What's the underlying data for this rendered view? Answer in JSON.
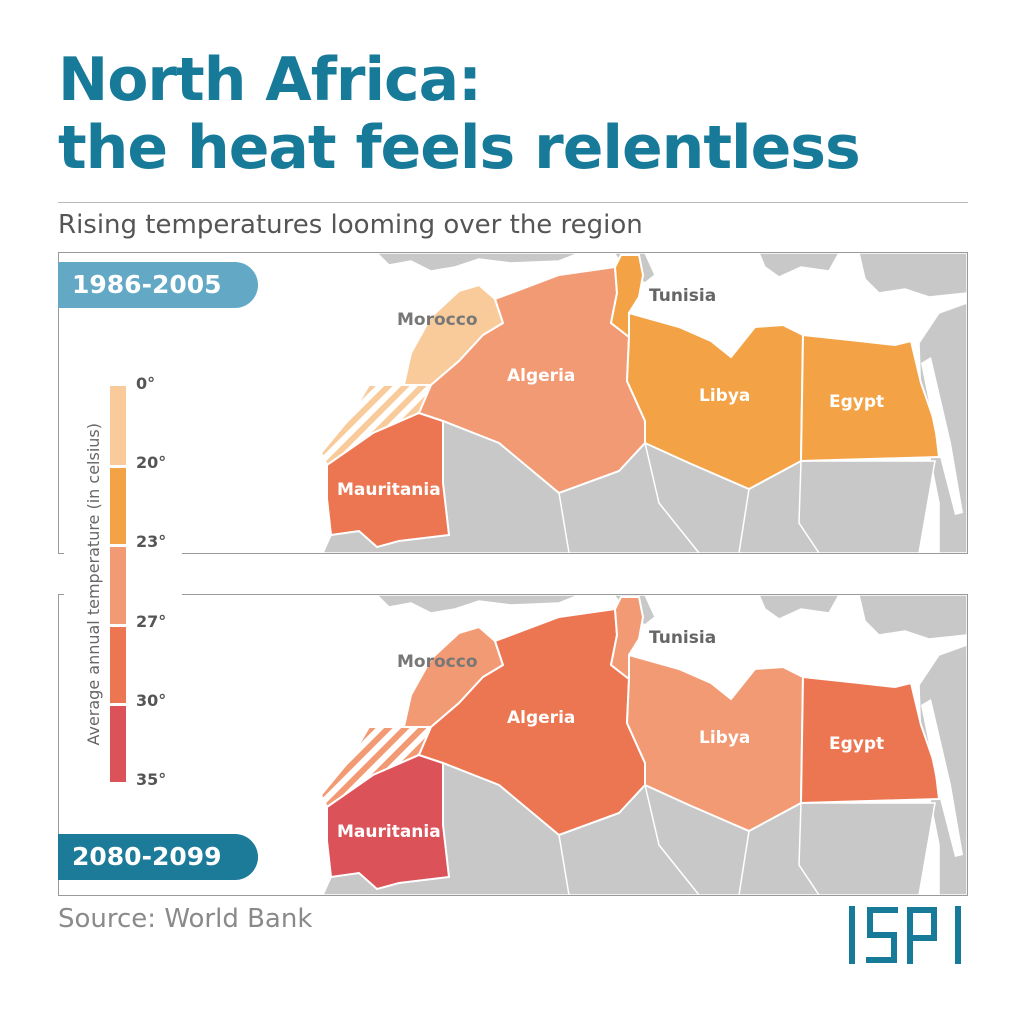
{
  "title": {
    "line1": "North Africa:",
    "line2": "the heat feels relentless"
  },
  "subtitle": "Rising temperatures looming over the region",
  "periods": {
    "top": "1986-2005",
    "bottom": "2080-2099"
  },
  "legend": {
    "axis_label": "Average annual temperature (in celsius)",
    "ticks": [
      "0°",
      "20°",
      "23°",
      "27°",
      "30°",
      "35°"
    ],
    "classes": [
      {
        "from": "0°",
        "to": "20°",
        "color": "#f9cb9a"
      },
      {
        "from": "20°",
        "to": "23°",
        "color": "#f3a245"
      },
      {
        "from": "23°",
        "to": "27°",
        "color": "#f29a74"
      },
      {
        "from": "27°",
        "to": "30°",
        "color": "#ec7651"
      },
      {
        "from": "30°",
        "to": "35°",
        "color": "#db5258"
      }
    ]
  },
  "countries": {
    "morocco": "Morocco",
    "algeria": "Algeria",
    "tunisia": "Tunisia",
    "libya": "Libya",
    "egypt": "Egypt",
    "mauritania": "Mauritania"
  },
  "maps": {
    "period_1986_2005": {
      "morocco": "#f9cb9a",
      "algeria": "#f29a74",
      "tunisia": "#f3a245",
      "libya": "#f3a245",
      "egypt": "#f3a245",
      "mauritania": "#ec7651"
    },
    "period_2080_2099": {
      "morocco": "#f29a74",
      "algeria": "#ec7651",
      "tunisia": "#f29a74",
      "libya": "#f29a74",
      "egypt": "#ec7651",
      "mauritania": "#db5258"
    }
  },
  "colors": {
    "title": "#177a99",
    "land_other": "#c8c8c8",
    "sea": "#ffffff"
  },
  "source": "Source: World Bank",
  "logo": "ISPI"
}
